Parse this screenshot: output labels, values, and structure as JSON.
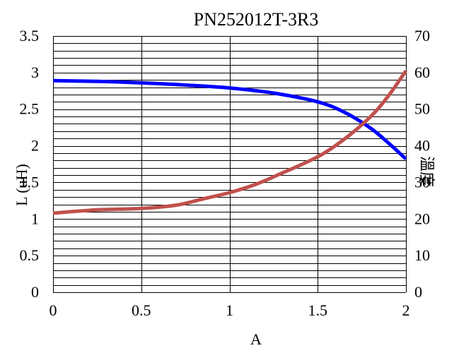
{
  "chart_data": {
    "type": "line",
    "title": "PN252012T-3R3",
    "xlabel": "A",
    "ylabel_left": "L (uH)",
    "ylabel_right": "溫度",
    "xlim": [
      0,
      2
    ],
    "ylim_left": [
      0,
      3.5
    ],
    "ylim_right": [
      0,
      70
    ],
    "x_ticks": [
      "0",
      "0.5",
      "1",
      "1.5",
      "2"
    ],
    "y_ticks_left": [
      "0",
      "0.5",
      "1",
      "1.5",
      "2",
      "2.5",
      "3",
      "3.5"
    ],
    "y_ticks_right": [
      "0",
      "10",
      "20",
      "30",
      "40",
      "50",
      "60",
      "70"
    ],
    "grid": true,
    "series": [
      {
        "axis": "left",
        "color": "#0000ff",
        "x": [
          0,
          0.25,
          0.5,
          0.75,
          1.0,
          1.25,
          1.5,
          1.65,
          1.8,
          1.9,
          2.0
        ],
        "y": [
          2.89,
          2.88,
          2.86,
          2.83,
          2.79,
          2.72,
          2.6,
          2.46,
          2.24,
          2.04,
          1.82
        ]
      },
      {
        "axis": "right",
        "color": "#c0504d",
        "x": [
          0,
          0.1,
          0.25,
          0.5,
          0.7,
          0.85,
          1.0,
          1.15,
          1.3,
          1.5,
          1.65,
          1.8,
          1.9,
          2.0
        ],
        "y": [
          21.6,
          22.0,
          22.5,
          22.9,
          23.8,
          25.5,
          27.2,
          29.5,
          32.6,
          37.0,
          41.8,
          48.0,
          53.6,
          60.5
        ]
      }
    ]
  }
}
